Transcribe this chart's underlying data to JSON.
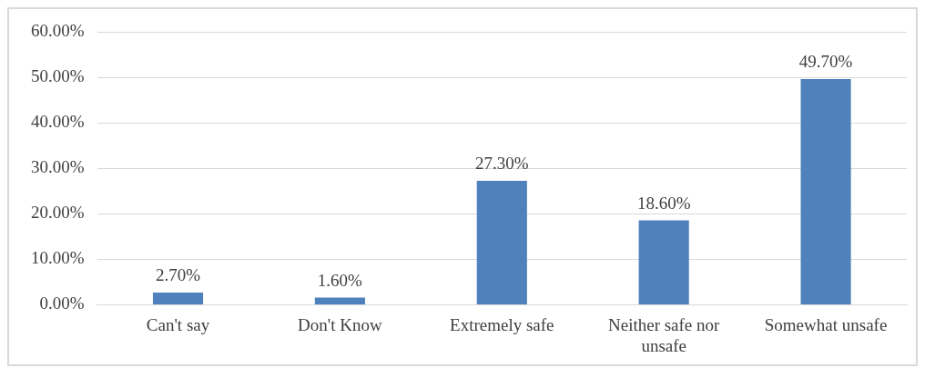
{
  "chart_data": {
    "type": "bar",
    "categories": [
      "Can't say",
      "Don't Know",
      "Extremely safe",
      "Neither safe nor unsafe",
      "Somewhat unsafe"
    ],
    "values": [
      2.7,
      1.6,
      27.3,
      18.6,
      49.7
    ],
    "color": "#4f81bd",
    "value_labels": [
      "2.70%",
      "1.60%",
      "27.30%",
      "18.60%",
      "49.70%"
    ],
    "ylim": [
      0,
      60
    ],
    "yticks": [
      {
        "value": 0,
        "label": "0.00%"
      },
      {
        "value": 10,
        "label": "10.00%"
      },
      {
        "value": 20,
        "label": "20.00%"
      },
      {
        "value": 30,
        "label": "30.00%"
      },
      {
        "value": 40,
        "label": "40.00%"
      },
      {
        "value": 50,
        "label": "50.00%"
      },
      {
        "value": 60,
        "label": "60.00%"
      }
    ],
    "grid": "y",
    "legend": false
  }
}
